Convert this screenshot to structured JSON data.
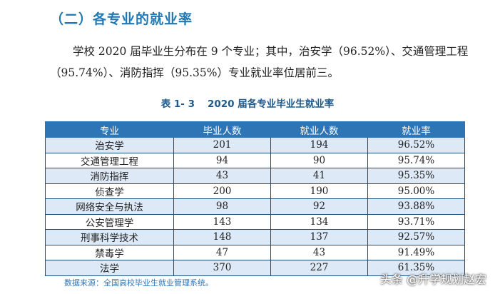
{
  "section_title": "（二）各专业的就业率",
  "paragraph": {
    "line1": "学校 2020 届毕业生分布在 9 个专业；其中，治安学（96.52%）、交通管理工程",
    "line2": "（95.74%）、消防指挥（95.35%）专业就业率位居前三。"
  },
  "table_caption": {
    "number": "表 1- 3",
    "title": "2020 届各专业毕业生就业率"
  },
  "table": {
    "headers": [
      "专业",
      "毕业人数",
      "就业人数",
      "就业率"
    ],
    "rows": [
      {
        "major": "治安学",
        "graduates": "201",
        "employed": "194",
        "rate": "96.52%"
      },
      {
        "major": "交通管理工程",
        "graduates": "94",
        "employed": "90",
        "rate": "95.74%"
      },
      {
        "major": "消防指挥",
        "graduates": "43",
        "employed": "41",
        "rate": "95.35%"
      },
      {
        "major": "侦查学",
        "graduates": "200",
        "employed": "190",
        "rate": "95.00%"
      },
      {
        "major": "网络安全与执法",
        "graduates": "98",
        "employed": "92",
        "rate": "93.88%"
      },
      {
        "major": "公安管理学",
        "graduates": "143",
        "employed": "134",
        "rate": "93.71%"
      },
      {
        "major": "刑事科学技术",
        "graduates": "148",
        "employed": "137",
        "rate": "92.57%"
      },
      {
        "major": "禁毒学",
        "graduates": "47",
        "employed": "43",
        "rate": "91.49%"
      },
      {
        "major": "法学",
        "graduates": "370",
        "employed": "227",
        "rate": "61.35%"
      }
    ]
  },
  "source_note": "数据来源：全国高校毕业生就业管理系统。",
  "watermark": "头条 @升学规划赵宏"
}
